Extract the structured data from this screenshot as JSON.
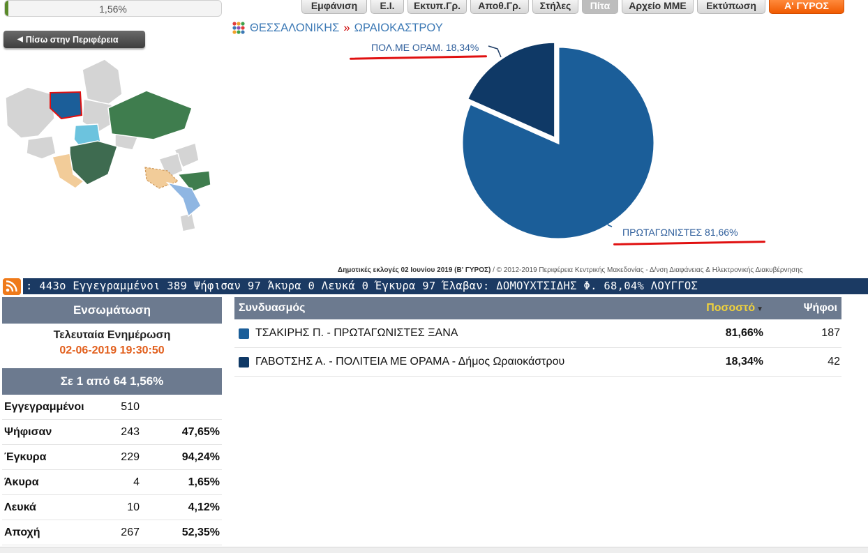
{
  "top_progress": {
    "label": "1,56%",
    "fraction": 0.0156
  },
  "tabs": [
    {
      "label": "Εμφάνιση",
      "state": "normal"
    },
    {
      "label": "Ε.Ι.",
      "state": "normal"
    },
    {
      "label": "Εκτυπ.Γρ.",
      "state": "normal"
    },
    {
      "label": "Αποθ.Γρ.",
      "state": "normal"
    },
    {
      "label": "Στήλες",
      "state": "normal"
    },
    {
      "label": "Πίτα",
      "state": "active"
    },
    {
      "label": "Αρχείο ΜΜΕ",
      "state": "normal"
    },
    {
      "label": "Εκτύπωση",
      "state": "normal"
    },
    {
      "label": "Α' ΓΥΡΟΣ",
      "state": "orange"
    }
  ],
  "back_button": {
    "label": "Πίσω στην Περιφέρεια",
    "icon": "left-arrow-icon"
  },
  "breadcrumb": {
    "region": "ΘΕΣΣΑΛΟΝΙΚΗΣ",
    "separator": "»",
    "municipality": "ΩΡΑΙΟΚΑΣΤΡΟΥ"
  },
  "chart_data": {
    "type": "pie",
    "slices": [
      {
        "label": "ΠΡΩΤΑΓΩΝΙΣΤΕΣ 81,66%",
        "value": 81.66,
        "color": "#1b5e99"
      },
      {
        "label": "ΠΟΛ.ΜΕ ΟΡΑΜ. 18,34%",
        "value": 18.34,
        "color": "#0f3966",
        "exploded": true
      }
    ]
  },
  "credit": {
    "bold": "Δημοτικές εκλογές 02 Ιουνίου 2019 (Β' ΓΥΡΟΣ)",
    "rest": " / © 2012-2019 Περιφέρεια Κεντρικής Μακεδονίας - Δ/νση Διαφάνειας & Ηλεκτρονικής Διακυβέρνησης"
  },
  "ticker": {
    "text": ": 443ο  Εγγεγραμμένοι 389  Ψήφισαν 97  Άκυρα 0  Λευκά 0  Έγκυρα 97  Έλαβαν: ΔΟΜΟΥΧΤΣΙΔΗΣ Φ. 68,04%  ΛΟΥΓΓΟΣ"
  },
  "sidebar": {
    "heading": "Ενσωμάτωση",
    "update_title": "Τελευταία Ενημέρωση",
    "update_datetime": "02-06-2019 19:30:50",
    "count_label": "Σε 1 από  64   1,56%",
    "stats": [
      {
        "label": "Εγγεγραμμένοι",
        "value": "510",
        "percent": ""
      },
      {
        "label": "Ψήφισαν",
        "value": "243",
        "percent": "47,65%"
      },
      {
        "label": "Έγκυρα",
        "value": "229",
        "percent": "94,24%"
      },
      {
        "label": "Άκυρα",
        "value": "4",
        "percent": "1,65%"
      },
      {
        "label": "Λευκά",
        "value": "10",
        "percent": "4,12%"
      },
      {
        "label": "Αποχή",
        "value": "267",
        "percent": "52,35%"
      }
    ]
  },
  "results": {
    "headers": {
      "combination": "Συνδυασμός",
      "percent": "Ποσοστό",
      "votes": "Ψήφοι"
    },
    "rows": [
      {
        "name": "ΤΣΑΚΙΡΗΣ Π. - ΠΡΩΤΑΓΩΝΙΣΤΕΣ ΞΑΝΑ",
        "percent": "81,66%",
        "votes": "187",
        "color": "#1b5e99"
      },
      {
        "name": "ΓΑΒΟΤΣΗΣ Α. - ΠΟΛΙΤΕΙΑ ΜΕ ΟΡΑΜΑ - Δήμος Ωραιοκάστρου",
        "percent": "18,34%",
        "votes": "42",
        "color": "#0f3966"
      }
    ]
  }
}
